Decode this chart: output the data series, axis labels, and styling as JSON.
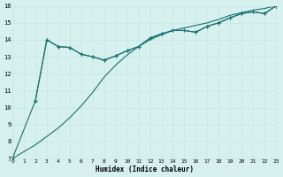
{
  "xlabel": "Humidex (Indice chaleur)",
  "bg_color": "#d6f0ee",
  "grid_color": "#c8e8e5",
  "line_color": "#1a7070",
  "xlim": [
    0,
    23
  ],
  "ylim": [
    7,
    16
  ],
  "xticks": [
    0,
    1,
    2,
    3,
    4,
    5,
    6,
    7,
    8,
    9,
    10,
    11,
    12,
    13,
    14,
    15,
    16,
    17,
    18,
    19,
    20,
    21,
    22,
    23
  ],
  "yticks": [
    7,
    8,
    9,
    10,
    11,
    12,
    13,
    14,
    15,
    16
  ],
  "line1_x": [
    0,
    1,
    2,
    3,
    4,
    5,
    6,
    7,
    8,
    9,
    10,
    11,
    12,
    13,
    14,
    15,
    16,
    17,
    18,
    19,
    20,
    21,
    22,
    23
  ],
  "line1_y": [
    7.0,
    7.4,
    7.8,
    8.3,
    8.8,
    9.4,
    10.1,
    10.9,
    11.8,
    12.5,
    13.1,
    13.6,
    14.0,
    14.3,
    14.55,
    14.7,
    14.85,
    15.0,
    15.2,
    15.45,
    15.6,
    15.75,
    15.85,
    16.0
  ],
  "line2_x": [
    2,
    3,
    4,
    5,
    6,
    7,
    8,
    9,
    10,
    11,
    12,
    13,
    14,
    15,
    16,
    17,
    18,
    19,
    20,
    21,
    22,
    23
  ],
  "line2_y": [
    10.4,
    14.0,
    13.6,
    13.55,
    13.15,
    13.0,
    12.8,
    13.05,
    13.35,
    13.6,
    14.1,
    14.35,
    14.55,
    14.55,
    14.45,
    14.8,
    15.0,
    15.3,
    15.55,
    15.65,
    15.55,
    16.0
  ],
  "line3_x": [
    0,
    2,
    3,
    4,
    5,
    6,
    7,
    8,
    9,
    10,
    11,
    12,
    13,
    14,
    15,
    16,
    17,
    18,
    19,
    20,
    21,
    22,
    23
  ],
  "line3_y": [
    7.0,
    10.4,
    14.0,
    13.6,
    13.55,
    13.15,
    13.0,
    12.8,
    13.05,
    13.35,
    13.6,
    14.1,
    14.35,
    14.55,
    14.55,
    14.45,
    14.8,
    15.0,
    15.3,
    15.55,
    15.65,
    15.55,
    16.0
  ]
}
